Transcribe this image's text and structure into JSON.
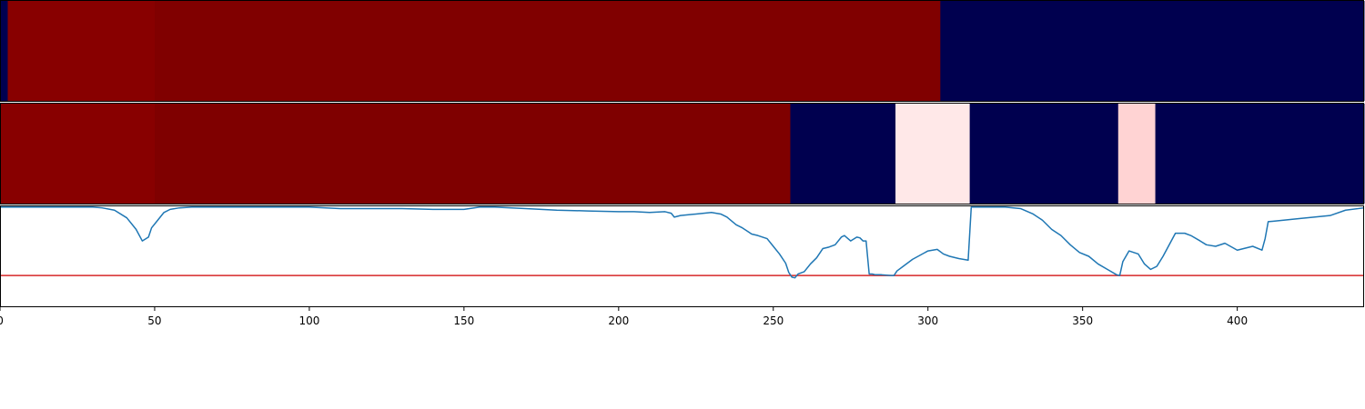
{
  "chart_data": [
    {
      "type": "heatmap",
      "xlim": [
        0,
        441
      ],
      "colormap": "seismic",
      "segments": [
        {
          "start": 0,
          "end": 2.5,
          "color": "#000050"
        },
        {
          "start": 2.5,
          "end": 50,
          "color": "#880000"
        },
        {
          "start": 50,
          "end": 304,
          "color": "#800000"
        },
        {
          "start": 304,
          "end": 441,
          "color": "#00004f"
        }
      ]
    },
    {
      "type": "heatmap",
      "xlim": [
        0,
        441
      ],
      "colormap": "seismic",
      "segments": [
        {
          "start": 0,
          "end": 50,
          "color": "#880000"
        },
        {
          "start": 50,
          "end": 255.5,
          "color": "#7f0000"
        },
        {
          "start": 255.5,
          "end": 289.5,
          "color": "#00004f"
        },
        {
          "start": 289.5,
          "end": 313.5,
          "color": "#ffe8e8"
        },
        {
          "start": 313.5,
          "end": 361.5,
          "color": "#00004f"
        },
        {
          "start": 361.5,
          "end": 373.5,
          "color": "#ffd3d3"
        },
        {
          "start": 373.5,
          "end": 441,
          "color": "#00004f"
        }
      ]
    },
    {
      "type": "line",
      "xlim": [
        0,
        441
      ],
      "ylim": [
        -0.3,
        1.0
      ],
      "xticks": [
        0,
        50,
        100,
        150,
        200,
        250,
        300,
        350,
        400
      ],
      "threshold": 0.1,
      "threshold_color": "#d62728",
      "line_color": "#1f77b4",
      "series": [
        {
          "x": [
            0,
            10,
            20,
            30,
            33,
            37,
            41,
            44,
            46,
            48,
            49,
            51,
            53,
            55,
            58,
            62,
            70,
            80,
            90,
            100,
            110,
            120,
            130,
            140,
            150,
            155,
            160,
            170,
            180,
            190,
            200,
            205,
            210,
            215,
            217,
            218,
            220,
            225,
            230,
            233,
            235,
            238,
            240,
            243,
            245,
            248,
            250,
            252,
            254,
            255,
            256,
            257,
            258,
            260,
            262,
            264,
            266,
            268,
            270,
            272,
            273,
            275,
            277,
            278,
            279,
            280,
            281,
            282,
            283,
            285,
            288,
            289,
            290,
            292,
            295,
            300,
            303,
            305,
            307,
            310,
            313,
            314,
            320,
            325,
            330,
            334,
            337,
            340,
            343,
            346,
            349,
            352,
            355,
            358,
            361,
            362,
            363,
            365,
            368,
            370,
            372,
            374,
            376,
            380,
            383,
            385,
            388,
            390,
            393,
            396,
            400,
            405,
            408,
            409,
            410,
            415,
            420,
            430,
            435,
            441
          ],
          "y": [
            0.99,
            0.99,
            0.99,
            0.99,
            0.98,
            0.95,
            0.85,
            0.7,
            0.55,
            0.6,
            0.72,
            0.82,
            0.92,
            0.96,
            0.98,
            0.99,
            0.99,
            0.99,
            0.99,
            0.99,
            0.97,
            0.97,
            0.97,
            0.96,
            0.96,
            0.99,
            0.99,
            0.97,
            0.95,
            0.94,
            0.93,
            0.93,
            0.92,
            0.93,
            0.91,
            0.86,
            0.88,
            0.9,
            0.92,
            0.9,
            0.86,
            0.76,
            0.72,
            0.64,
            0.62,
            0.58,
            0.48,
            0.38,
            0.26,
            0.14,
            0.08,
            0.07,
            0.12,
            0.15,
            0.25,
            0.33,
            0.45,
            0.47,
            0.5,
            0.6,
            0.62,
            0.55,
            0.6,
            0.59,
            0.55,
            0.55,
            0.12,
            0.12,
            0.11,
            0.11,
            0.1,
            0.1,
            0.16,
            0.22,
            0.31,
            0.42,
            0.44,
            0.38,
            0.35,
            0.32,
            0.3,
            0.99,
            0.99,
            0.99,
            0.97,
            0.9,
            0.82,
            0.7,
            0.62,
            0.5,
            0.4,
            0.35,
            0.25,
            0.18,
            0.11,
            0.1,
            0.28,
            0.42,
            0.38,
            0.25,
            0.18,
            0.22,
            0.35,
            0.65,
            0.65,
            0.62,
            0.55,
            0.5,
            0.48,
            0.52,
            0.43,
            0.48,
            0.43,
            0.58,
            0.8,
            0.82,
            0.84,
            0.88,
            0.95,
            0.98
          ]
        }
      ]
    }
  ]
}
